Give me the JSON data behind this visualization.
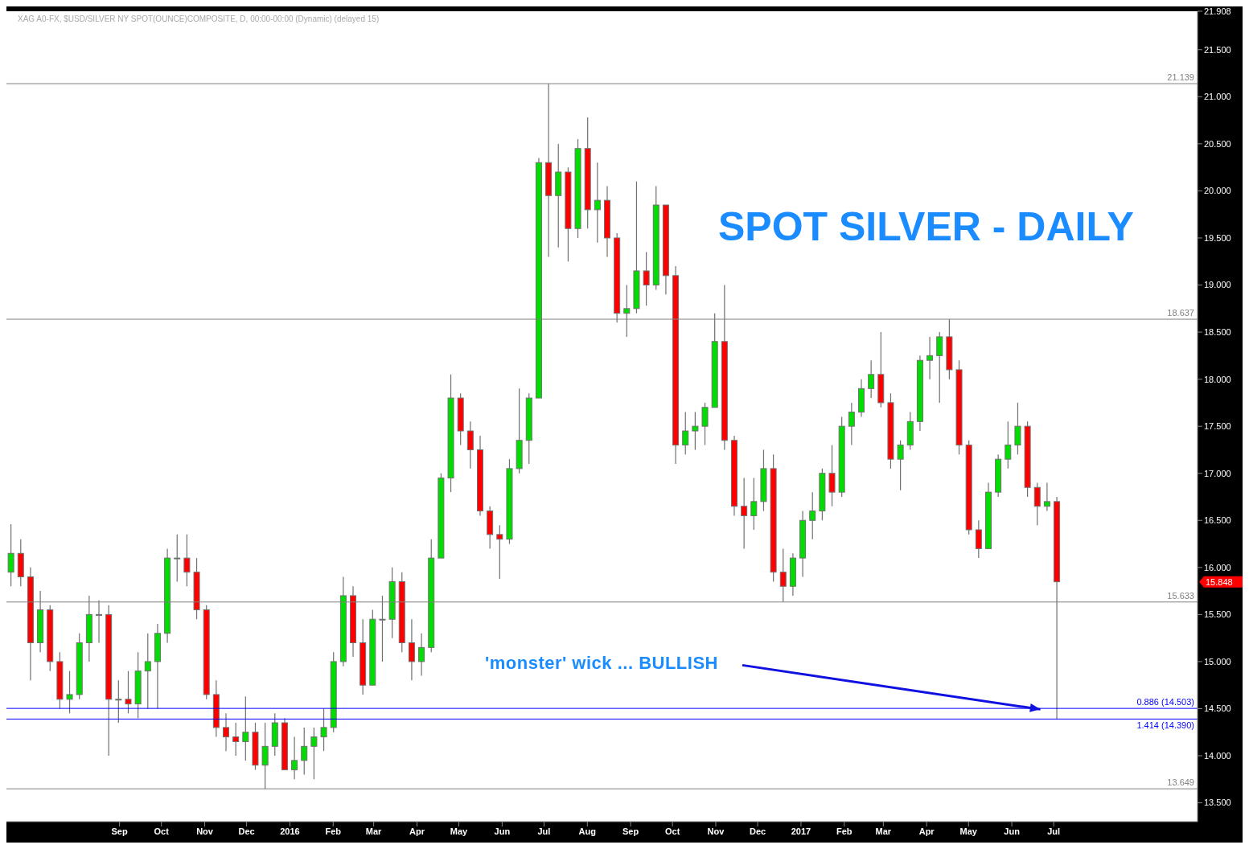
{
  "chart_data": {
    "type": "candlestick",
    "title": "SPOT SILVER - DAILY",
    "subtitle": "XAG A0-FX, $USD/SILVER NY SPOT(OUNCE)COMPOSITE, D, 00:00-00:00 (Dynamic) (delayed 15)",
    "x": [
      "2015-06-15",
      "2015-06-22",
      "2015-06-29",
      "2015-07-06",
      "2015-07-13",
      "2015-07-20",
      "2015-07-27",
      "2015-08-03",
      "2015-08-10",
      "2015-08-17",
      "2015-08-24",
      "2015-08-31",
      "2015-09-07",
      "2015-09-14",
      "2015-09-21",
      "2015-09-28",
      "2015-10-05",
      "2015-10-12",
      "2015-10-19",
      "2015-10-26",
      "2015-11-02",
      "2015-11-09",
      "2015-11-16",
      "2015-11-23",
      "2015-11-30",
      "2015-12-07",
      "2015-12-14",
      "2015-12-21",
      "2015-12-28",
      "2016-01-04",
      "2016-01-11",
      "2016-01-18",
      "2016-01-25",
      "2016-02-01",
      "2016-02-08",
      "2016-02-15",
      "2016-02-22",
      "2016-02-29",
      "2016-03-07",
      "2016-03-14",
      "2016-03-21",
      "2016-03-28",
      "2016-04-04",
      "2016-04-11",
      "2016-04-18",
      "2016-04-25",
      "2016-05-02",
      "2016-05-09",
      "2016-05-16",
      "2016-05-23",
      "2016-05-30",
      "2016-06-06",
      "2016-06-13",
      "2016-06-20",
      "2016-06-27",
      "2016-07-04",
      "2016-07-11",
      "2016-07-18",
      "2016-07-25",
      "2016-08-01",
      "2016-08-08",
      "2016-08-15",
      "2016-08-22",
      "2016-08-29",
      "2016-09-05",
      "2016-09-12",
      "2016-09-19",
      "2016-09-26",
      "2016-10-03",
      "2016-10-10",
      "2016-10-17",
      "2016-10-24",
      "2016-10-31",
      "2016-11-07",
      "2016-11-14",
      "2016-11-21",
      "2016-11-28",
      "2016-12-05",
      "2016-12-12",
      "2016-12-19",
      "2016-12-26",
      "2017-01-02",
      "2017-01-09",
      "2017-01-16",
      "2017-01-23",
      "2017-01-30",
      "2017-02-06",
      "2017-02-13",
      "2017-02-20",
      "2017-02-27",
      "2017-03-06",
      "2017-03-13",
      "2017-03-20",
      "2017-03-27",
      "2017-04-03",
      "2017-04-10",
      "2017-04-17",
      "2017-04-24",
      "2017-05-01",
      "2017-05-08",
      "2017-05-15",
      "2017-05-22",
      "2017-05-29",
      "2017-06-05",
      "2017-06-12",
      "2017-06-19",
      "2017-06-26",
      "2017-07-03"
    ],
    "ohlc": [
      [
        15.95,
        16.46,
        15.8,
        16.15
      ],
      [
        16.15,
        16.3,
        15.8,
        15.9
      ],
      [
        15.9,
        16.0,
        14.8,
        15.2
      ],
      [
        15.2,
        15.75,
        15.1,
        15.55
      ],
      [
        15.55,
        15.6,
        14.9,
        15.0
      ],
      [
        15.0,
        15.1,
        14.5,
        14.6
      ],
      [
        14.6,
        14.9,
        14.45,
        14.65
      ],
      [
        14.65,
        15.3,
        14.6,
        15.2
      ],
      [
        15.2,
        15.7,
        15.0,
        15.5
      ],
      [
        15.5,
        15.65,
        15.2,
        15.5
      ],
      [
        15.5,
        15.6,
        14.0,
        14.6
      ],
      [
        14.6,
        14.8,
        14.35,
        14.6
      ],
      [
        14.6,
        14.9,
        14.45,
        14.55
      ],
      [
        14.55,
        15.1,
        14.4,
        14.9
      ],
      [
        14.9,
        15.3,
        14.5,
        15.0
      ],
      [
        15.0,
        15.4,
        14.5,
        15.3
      ],
      [
        15.3,
        16.2,
        15.2,
        16.1
      ],
      [
        16.1,
        16.35,
        15.85,
        16.1
      ],
      [
        16.1,
        16.35,
        15.8,
        15.95
      ],
      [
        15.95,
        16.1,
        15.45,
        15.55
      ],
      [
        15.55,
        15.6,
        14.6,
        14.65
      ],
      [
        14.65,
        14.8,
        14.2,
        14.3
      ],
      [
        14.3,
        14.45,
        14.05,
        14.2
      ],
      [
        14.2,
        14.35,
        14.0,
        14.15
      ],
      [
        14.15,
        14.63,
        13.95,
        14.25
      ],
      [
        14.25,
        14.35,
        13.85,
        13.9
      ],
      [
        13.9,
        14.35,
        13.649,
        14.1
      ],
      [
        14.1,
        14.45,
        14.0,
        14.35
      ],
      [
        14.35,
        14.4,
        13.85,
        13.85
      ],
      [
        13.85,
        14.2,
        13.75,
        13.95
      ],
      [
        13.95,
        14.3,
        13.8,
        14.1
      ],
      [
        14.1,
        14.3,
        13.75,
        14.2
      ],
      [
        14.2,
        14.5,
        14.05,
        14.3
      ],
      [
        14.3,
        15.1,
        14.25,
        15.0
      ],
      [
        15.0,
        15.9,
        14.95,
        15.7
      ],
      [
        15.7,
        15.8,
        15.05,
        15.2
      ],
      [
        15.2,
        15.45,
        14.65,
        14.75
      ],
      [
        14.75,
        15.55,
        14.75,
        15.45
      ],
      [
        15.45,
        15.7,
        15.0,
        15.45
      ],
      [
        15.45,
        16.0,
        15.25,
        15.85
      ],
      [
        15.85,
        15.95,
        15.1,
        15.2
      ],
      [
        15.2,
        15.45,
        14.8,
        15.0
      ],
      [
        15.0,
        15.3,
        14.85,
        15.15
      ],
      [
        15.15,
        16.3,
        15.1,
        16.1
      ],
      [
        16.1,
        17.0,
        16.1,
        16.95
      ],
      [
        16.95,
        18.05,
        16.8,
        17.8
      ],
      [
        17.8,
        17.85,
        17.3,
        17.45
      ],
      [
        17.45,
        17.55,
        17.05,
        17.25
      ],
      [
        17.25,
        17.4,
        16.55,
        16.6
      ],
      [
        16.6,
        16.65,
        16.2,
        16.35
      ],
      [
        16.35,
        16.45,
        15.88,
        16.3
      ],
      [
        16.3,
        17.15,
        16.25,
        17.05
      ],
      [
        17.05,
        17.9,
        17.0,
        17.35
      ],
      [
        17.35,
        17.85,
        17.1,
        17.8
      ],
      [
        17.8,
        20.35,
        17.8,
        20.3
      ],
      [
        20.3,
        21.139,
        19.3,
        19.95
      ],
      [
        19.95,
        20.5,
        19.4,
        20.2
      ],
      [
        20.2,
        20.25,
        19.25,
        19.6
      ],
      [
        19.6,
        20.55,
        19.5,
        20.45
      ],
      [
        20.45,
        20.78,
        19.6,
        19.8
      ],
      [
        19.8,
        20.3,
        19.45,
        19.9
      ],
      [
        19.9,
        20.05,
        19.3,
        19.5
      ],
      [
        19.5,
        19.55,
        18.6,
        18.7
      ],
      [
        18.7,
        19.0,
        18.45,
        18.75
      ],
      [
        18.75,
        20.1,
        18.7,
        19.15
      ],
      [
        19.15,
        19.35,
        18.78,
        19.0
      ],
      [
        19.0,
        20.05,
        18.95,
        19.85
      ],
      [
        19.85,
        19.85,
        18.9,
        19.1
      ],
      [
        19.1,
        19.2,
        17.1,
        17.3
      ],
      [
        17.3,
        17.65,
        17.2,
        17.45
      ],
      [
        17.45,
        17.65,
        17.25,
        17.5
      ],
      [
        17.5,
        17.75,
        17.3,
        17.7
      ],
      [
        17.7,
        18.7,
        17.7,
        18.4
      ],
      [
        18.4,
        19.0,
        17.25,
        17.35
      ],
      [
        17.35,
        17.4,
        16.55,
        16.65
      ],
      [
        16.65,
        16.95,
        16.2,
        16.55
      ],
      [
        16.55,
        16.95,
        16.4,
        16.7
      ],
      [
        16.7,
        17.25,
        16.6,
        17.05
      ],
      [
        17.05,
        17.2,
        15.85,
        15.95
      ],
      [
        15.95,
        16.2,
        15.633,
        15.8
      ],
      [
        15.8,
        16.15,
        15.7,
        16.1
      ],
      [
        16.1,
        16.6,
        15.9,
        16.5
      ],
      [
        16.5,
        16.8,
        16.3,
        16.6
      ],
      [
        16.6,
        17.05,
        16.5,
        17.0
      ],
      [
        17.0,
        17.3,
        16.65,
        16.8
      ],
      [
        16.8,
        17.6,
        16.75,
        17.5
      ],
      [
        17.5,
        17.75,
        17.3,
        17.65
      ],
      [
        17.65,
        18.0,
        17.6,
        17.9
      ],
      [
        17.9,
        18.2,
        17.8,
        18.05
      ],
      [
        18.05,
        18.5,
        17.7,
        17.75
      ],
      [
        17.75,
        17.85,
        17.05,
        17.15
      ],
      [
        17.15,
        17.35,
        16.82,
        17.3
      ],
      [
        17.3,
        17.65,
        17.25,
        17.55
      ],
      [
        17.55,
        18.25,
        17.45,
        18.2
      ],
      [
        18.2,
        18.45,
        18.0,
        18.25
      ],
      [
        18.25,
        18.5,
        17.75,
        18.45
      ],
      [
        18.45,
        18.637,
        18.0,
        18.1
      ],
      [
        18.1,
        18.2,
        17.2,
        17.3
      ],
      [
        17.3,
        17.35,
        16.35,
        16.4
      ],
      [
        16.4,
        16.5,
        16.1,
        16.2
      ],
      [
        16.2,
        16.9,
        16.2,
        16.8
      ],
      [
        16.8,
        17.2,
        16.75,
        17.15
      ],
      [
        17.15,
        17.55,
        17.05,
        17.3
      ],
      [
        17.3,
        17.75,
        17.2,
        17.5
      ],
      [
        17.5,
        17.55,
        16.75,
        16.85
      ],
      [
        16.85,
        16.9,
        16.45,
        16.65
      ],
      [
        16.65,
        16.9,
        16.6,
        16.7
      ],
      [
        16.7,
        16.75,
        14.39,
        15.848
      ]
    ],
    "xlim": [
      "2015-06-12",
      "2017-10-12"
    ],
    "xticks": [
      {
        "value": "2015-09-01",
        "label": "Sep"
      },
      {
        "value": "2015-10-01",
        "label": "Oct"
      },
      {
        "value": "2015-11-01",
        "label": "Nov"
      },
      {
        "value": "2015-12-01",
        "label": "Dec"
      },
      {
        "value": "2016-01-01",
        "label": "2016"
      },
      {
        "value": "2016-02-01",
        "label": "Feb"
      },
      {
        "value": "2016-03-01",
        "label": "Mar"
      },
      {
        "value": "2016-04-01",
        "label": "Apr"
      },
      {
        "value": "2016-05-01",
        "label": "May"
      },
      {
        "value": "2016-06-01",
        "label": "Jun"
      },
      {
        "value": "2016-07-01",
        "label": "Jul"
      },
      {
        "value": "2016-08-01",
        "label": "Aug"
      },
      {
        "value": "2016-09-01",
        "label": "Sep"
      },
      {
        "value": "2016-10-01",
        "label": "Oct"
      },
      {
        "value": "2016-11-01",
        "label": "Nov"
      },
      {
        "value": "2016-12-01",
        "label": "Dec"
      },
      {
        "value": "2017-01-01",
        "label": "2017"
      },
      {
        "value": "2017-02-01",
        "label": "Feb"
      },
      {
        "value": "2017-03-01",
        "label": "Mar"
      },
      {
        "value": "2017-04-01",
        "label": "Apr"
      },
      {
        "value": "2017-05-01",
        "label": "May"
      },
      {
        "value": "2017-06-01",
        "label": "Jun"
      },
      {
        "value": "2017-07-01",
        "label": "Jul"
      }
    ],
    "ylim": [
      13.3,
      21.908
    ],
    "yticks": [
      {
        "value": 13.5,
        "label": "13.500"
      },
      {
        "value": 14,
        "label": "14.000"
      },
      {
        "value": 14.5,
        "label": "14.500"
      },
      {
        "value": 15,
        "label": "15.000"
      },
      {
        "value": 15.5,
        "label": "15.500"
      },
      {
        "value": 16,
        "label": "16.000"
      },
      {
        "value": 16.5,
        "label": "16.500"
      },
      {
        "value": 17,
        "label": "17.000"
      },
      {
        "value": 17.5,
        "label": "17.500"
      },
      {
        "value": 18,
        "label": "18.000"
      },
      {
        "value": 18.5,
        "label": "18.500"
      },
      {
        "value": 19,
        "label": "19.000"
      },
      {
        "value": 19.5,
        "label": "19.500"
      },
      {
        "value": 20,
        "label": "20.000"
      },
      {
        "value": 20.5,
        "label": "20.500"
      },
      {
        "value": 21,
        "label": "21.000"
      },
      {
        "value": 21.5,
        "label": "21.500"
      },
      {
        "value": 21.908,
        "label": "21.908"
      }
    ],
    "ref_lines": [
      {
        "axis": "y",
        "value": 21.139,
        "label": "21.139",
        "color": "#808080"
      },
      {
        "axis": "y",
        "value": 18.637,
        "label": "18.637",
        "color": "#808080"
      },
      {
        "axis": "y",
        "value": 15.633,
        "label": "15.633",
        "color": "#808080"
      },
      {
        "axis": "y",
        "value": 14.503,
        "label": "0.886 (14.503)",
        "color": "#0000ff"
      },
      {
        "axis": "y",
        "value": 14.39,
        "label": "1.414 (14.390)",
        "color": "#0000ff"
      },
      {
        "axis": "y",
        "value": 13.649,
        "label": "13.649",
        "color": "#808080"
      }
    ],
    "annotations": [
      "'monster' wick ... BULLISH",
      "15.848"
    ],
    "grid": false
  }
}
